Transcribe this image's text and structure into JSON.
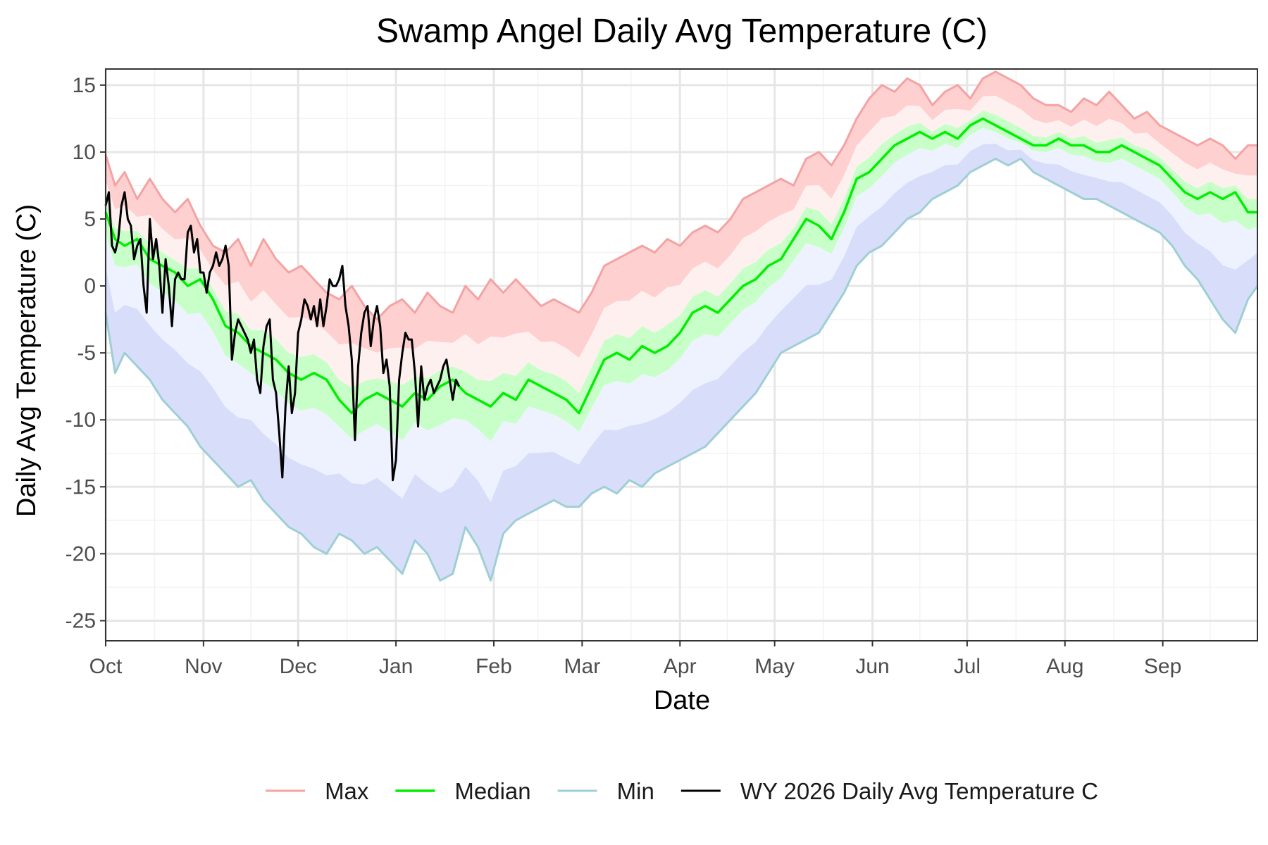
{
  "chart_data": {
    "type": "line",
    "title": "Swamp Angel Daily Avg Temperature (C)",
    "xlabel": "Date",
    "ylabel": "Daily Avg Temperature (C)",
    "x_unit": "day of water year (Oct 1 = 0)",
    "xlim": [
      0,
      365
    ],
    "ylim": [
      -26.5,
      16.2
    ],
    "yticks": [
      15,
      10,
      5,
      0,
      -5,
      -10,
      -15,
      -20,
      -25
    ],
    "ytick_labels": [
      "15",
      "10",
      "5",
      "0",
      "-5",
      "-10",
      "-15",
      "-20",
      "-25"
    ],
    "xticks": [
      0,
      31,
      61,
      92,
      123,
      151,
      182,
      212,
      243,
      273,
      304,
      335
    ],
    "xtick_labels": [
      "Oct",
      "Nov",
      "Dec",
      "Jan",
      "Feb",
      "Mar",
      "Apr",
      "May",
      "Jun",
      "Jul",
      "Aug",
      "Sep"
    ],
    "grid": true,
    "legend_position": "bottom",
    "colors": {
      "max": "#f4a3a3",
      "median": "#00ee00",
      "min": "#9ecfd4",
      "current": "#000000",
      "band_upper_outer": "#ffd0d0",
      "band_upper_inner": "#fff0f0",
      "band_lower_inner": "#eef2ff",
      "band_lower_outer": "#d8defa",
      "band_median": "#c8ffc8"
    },
    "series": [
      {
        "name": "Max",
        "x": [
          0,
          3,
          6,
          10,
          14,
          18,
          22,
          26,
          30,
          34,
          38,
          42,
          46,
          50,
          54,
          58,
          62,
          66,
          70,
          74,
          78,
          82,
          86,
          90,
          94,
          98,
          102,
          106,
          110,
          114,
          118,
          122,
          126,
          130,
          134,
          138,
          142,
          146,
          150,
          154,
          158,
          162,
          166,
          170,
          174,
          178,
          182,
          186,
          190,
          194,
          198,
          202,
          206,
          210,
          214,
          218,
          222,
          226,
          230,
          234,
          238,
          242,
          246,
          250,
          254,
          258,
          262,
          266,
          270,
          274,
          278,
          282,
          286,
          290,
          294,
          298,
          302,
          306,
          310,
          314,
          318,
          322,
          326,
          330,
          334,
          338,
          342,
          346,
          350,
          354,
          358,
          362,
          365
        ],
        "values": [
          9.8,
          7.5,
          8.5,
          6.5,
          8.0,
          6.5,
          5.5,
          6.5,
          4.5,
          3.0,
          2.5,
          3.5,
          1.5,
          3.5,
          2.0,
          1.0,
          1.5,
          0.5,
          -0.5,
          -1.0,
          0.0,
          -1.5,
          -2.5,
          -1.5,
          -1.0,
          -2.0,
          -0.5,
          -1.5,
          -2.0,
          0.0,
          -1.0,
          0.5,
          -0.5,
          0.5,
          -0.5,
          -1.5,
          -1.0,
          -1.5,
          -2.0,
          -0.5,
          1.5,
          2.0,
          2.5,
          3.0,
          2.5,
          3.5,
          3.0,
          4.0,
          4.5,
          4.0,
          5.0,
          6.5,
          7.0,
          7.5,
          8.0,
          7.5,
          9.5,
          10.0,
          9.0,
          10.5,
          12.5,
          14.0,
          15.0,
          14.5,
          15.5,
          15.0,
          13.5,
          14.5,
          15.0,
          14.0,
          15.5,
          16.0,
          15.5,
          15.0,
          14.0,
          13.5,
          13.5,
          13.0,
          14.0,
          13.5,
          14.5,
          13.5,
          12.5,
          13.0,
          12.0,
          11.5,
          11.0,
          10.5,
          11.0,
          10.5,
          9.5,
          10.5,
          10.5
        ]
      },
      {
        "name": "Median",
        "x": [
          0,
          3,
          6,
          10,
          14,
          18,
          22,
          26,
          30,
          34,
          38,
          42,
          46,
          50,
          54,
          58,
          62,
          66,
          70,
          74,
          78,
          82,
          86,
          90,
          94,
          98,
          102,
          106,
          110,
          114,
          118,
          122,
          126,
          130,
          134,
          138,
          142,
          146,
          150,
          154,
          158,
          162,
          166,
          170,
          174,
          178,
          182,
          186,
          190,
          194,
          198,
          202,
          206,
          210,
          214,
          218,
          222,
          226,
          230,
          234,
          238,
          242,
          246,
          250,
          254,
          258,
          262,
          266,
          270,
          274,
          278,
          282,
          286,
          290,
          294,
          298,
          302,
          306,
          310,
          314,
          318,
          322,
          326,
          330,
          334,
          338,
          342,
          346,
          350,
          354,
          358,
          362,
          365
        ],
        "values": [
          5.5,
          3.5,
          3.0,
          3.5,
          2.0,
          1.5,
          1.0,
          0.0,
          0.5,
          -1.0,
          -3.0,
          -3.5,
          -4.5,
          -5.0,
          -5.5,
          -6.5,
          -7.0,
          -6.5,
          -7.0,
          -8.5,
          -9.5,
          -8.5,
          -8.0,
          -8.5,
          -9.0,
          -8.0,
          -8.5,
          -7.5,
          -7.0,
          -8.0,
          -8.5,
          -9.0,
          -8.0,
          -8.5,
          -7.0,
          -7.5,
          -8.0,
          -8.5,
          -9.5,
          -7.5,
          -5.5,
          -5.0,
          -5.5,
          -4.5,
          -5.0,
          -4.5,
          -3.5,
          -2.0,
          -1.5,
          -2.0,
          -1.0,
          0.0,
          0.5,
          1.5,
          2.0,
          3.5,
          5.0,
          4.5,
          3.5,
          5.5,
          8.0,
          8.5,
          9.5,
          10.5,
          11.0,
          11.5,
          11.0,
          11.5,
          11.0,
          12.0,
          12.5,
          12.0,
          11.5,
          11.0,
          10.5,
          10.5,
          11.0,
          10.5,
          10.5,
          10.0,
          10.0,
          10.5,
          10.0,
          9.5,
          9.0,
          8.0,
          7.0,
          6.5,
          7.0,
          6.5,
          7.0,
          5.5,
          5.5
        ]
      },
      {
        "name": "Min",
        "x": [
          0,
          3,
          6,
          10,
          14,
          18,
          22,
          26,
          30,
          34,
          38,
          42,
          46,
          50,
          54,
          58,
          62,
          66,
          70,
          74,
          78,
          82,
          86,
          90,
          94,
          98,
          102,
          106,
          110,
          114,
          118,
          122,
          126,
          130,
          134,
          138,
          142,
          146,
          150,
          154,
          158,
          162,
          166,
          170,
          174,
          178,
          182,
          186,
          190,
          194,
          198,
          202,
          206,
          210,
          214,
          218,
          222,
          226,
          230,
          234,
          238,
          242,
          246,
          250,
          254,
          258,
          262,
          266,
          270,
          274,
          278,
          282,
          286,
          290,
          294,
          298,
          302,
          306,
          310,
          314,
          318,
          322,
          326,
          330,
          334,
          338,
          342,
          346,
          350,
          354,
          358,
          362,
          365
        ],
        "values": [
          -2.0,
          -6.5,
          -5.0,
          -6.0,
          -7.0,
          -8.5,
          -9.5,
          -10.5,
          -12.0,
          -13.0,
          -14.0,
          -15.0,
          -14.5,
          -16.0,
          -17.0,
          -18.0,
          -18.5,
          -19.5,
          -20.0,
          -18.5,
          -19.0,
          -20.0,
          -19.5,
          -20.5,
          -21.5,
          -19.0,
          -20.0,
          -22.0,
          -21.5,
          -18.0,
          -19.5,
          -22.0,
          -18.5,
          -17.5,
          -17.0,
          -16.5,
          -16.0,
          -16.5,
          -16.5,
          -15.5,
          -15.0,
          -15.5,
          -14.5,
          -15.0,
          -14.0,
          -13.5,
          -13.0,
          -12.5,
          -12.0,
          -11.0,
          -10.0,
          -9.0,
          -8.0,
          -6.5,
          -5.0,
          -4.5,
          -4.0,
          -3.5,
          -2.0,
          -0.5,
          1.5,
          2.5,
          3.0,
          4.0,
          5.0,
          5.5,
          6.5,
          7.0,
          7.5,
          8.5,
          9.0,
          9.5,
          9.0,
          9.5,
          8.5,
          8.0,
          7.5,
          7.0,
          6.5,
          6.5,
          6.0,
          5.5,
          5.0,
          4.5,
          4.0,
          3.0,
          1.5,
          0.5,
          -1.0,
          -2.5,
          -3.5,
          -1.0,
          0.0
        ]
      },
      {
        "name": "WY 2026 Daily Avg Temperature C",
        "x": [
          0,
          1,
          2,
          3,
          4,
          5,
          6,
          7,
          8,
          9,
          10,
          11,
          12,
          13,
          14,
          15,
          16,
          17,
          18,
          19,
          20,
          21,
          22,
          23,
          24,
          25,
          26,
          27,
          28,
          29,
          30,
          31,
          32,
          33,
          34,
          35,
          36,
          37,
          38,
          39,
          40,
          41,
          42,
          43,
          44,
          45,
          46,
          47,
          48,
          49,
          50,
          51,
          52,
          53,
          54,
          55,
          56,
          57,
          58,
          59,
          60,
          61,
          62,
          63,
          64,
          65,
          66,
          67,
          68,
          69,
          70,
          71,
          72,
          73,
          74,
          75,
          76,
          77,
          78,
          79,
          80,
          81,
          82,
          83,
          84,
          85,
          86,
          87,
          88,
          89,
          90,
          91,
          92,
          93,
          94,
          95,
          96,
          97,
          98,
          99,
          100,
          101,
          102,
          103,
          104,
          105,
          106,
          107,
          108,
          109,
          110,
          111,
          112
        ],
        "values": [
          6.0,
          7.0,
          3.0,
          2.5,
          3.5,
          6.0,
          7.0,
          5.0,
          4.5,
          2.0,
          3.0,
          3.5,
          0.0,
          -2.0,
          5.0,
          2.0,
          3.5,
          1.5,
          -2.0,
          2.0,
          0.0,
          -3.0,
          0.5,
          1.0,
          0.5,
          0.5,
          4.0,
          4.5,
          2.5,
          3.5,
          1.0,
          1.0,
          -0.5,
          1.0,
          1.5,
          2.5,
          1.5,
          2.0,
          3.0,
          1.5,
          -5.5,
          -3.5,
          -2.5,
          -3.0,
          -3.5,
          -4.0,
          -5.0,
          -4.0,
          -7.0,
          -8.0,
          -4.5,
          -3.0,
          -2.5,
          -7.0,
          -8.0,
          -11.0,
          -14.3,
          -9.0,
          -6.0,
          -9.5,
          -8.0,
          -3.5,
          -2.5,
          -1.0,
          -1.5,
          -2.5,
          -1.5,
          -3.0,
          -1.0,
          -3.0,
          -1.5,
          0.5,
          0.0,
          0.0,
          0.5,
          1.5,
          -1.5,
          -3.0,
          -5.5,
          -11.5,
          -6.0,
          -3.5,
          -2.0,
          -1.5,
          -4.5,
          -2.5,
          -1.5,
          -3.0,
          -6.5,
          -5.5,
          -7.5,
          -14.5,
          -13.0,
          -7.0,
          -5.0,
          -3.5,
          -4.0,
          -4.0,
          -6.5,
          -10.5,
          -6.0,
          -8.5,
          -7.5,
          -7.0,
          -8.0,
          -7.5,
          -7.0,
          -6.0,
          -5.5,
          -7.0,
          -8.5,
          -7.0,
          -7.5
        ]
      }
    ]
  }
}
